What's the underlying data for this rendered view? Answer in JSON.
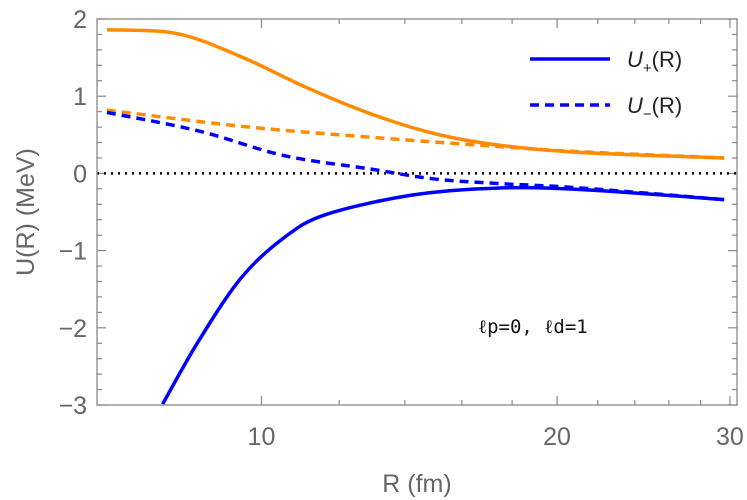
{
  "chart_data": {
    "type": "line",
    "title": "",
    "xlabel": "R (fm)",
    "ylabel": "U(R) (MeV)",
    "x_scale": "log",
    "xlim": [
      6.8,
      30.5
    ],
    "ylim": [
      -3,
      2
    ],
    "x_ticks": [
      10,
      20,
      30
    ],
    "x_minor_ticks": [
      12,
      14,
      16,
      18,
      22,
      24,
      26,
      28
    ],
    "y_ticks": [
      -3,
      -2,
      -1,
      0,
      1,
      2
    ],
    "grid": false,
    "legend_placement": "top-right",
    "annotation": "ℓp=0, ℓd=1",
    "annotation_parts": {
      "l1": "ℓ",
      "s1": "p",
      "v1": "=0, ",
      "l2": "ℓ",
      "s2": "d",
      "v2": "=1"
    },
    "legend": [
      {
        "label_main": "U",
        "label_sub": "+",
        "label_tail": "(R)",
        "style": "solid",
        "color": "#0000FF"
      },
      {
        "label_main": "U",
        "label_sub": "−",
        "label_tail": "(R)",
        "style": "dashed",
        "color": "#0000FF"
      }
    ],
    "reference_line": {
      "y": 0,
      "style": "dotted",
      "color": "#000000"
    },
    "series": [
      {
        "style": "solid",
        "color": "#FF8C00",
        "x": [
          6.96,
          8.21,
          9.54,
          11.08,
          12.87,
          14.95,
          17.36,
          21.2,
          29.6
        ],
        "y": [
          1.86,
          1.81,
          1.51,
          1.12,
          0.78,
          0.52,
          0.37,
          0.27,
          0.2
        ]
      },
      {
        "style": "dashed",
        "color": "#FF8C00",
        "x": [
          6.96,
          9.54,
          12.87,
          17.36,
          21.2,
          29.6
        ],
        "y": [
          0.82,
          0.61,
          0.47,
          0.35,
          0.28,
          0.2
        ]
      },
      {
        "style": "solid",
        "color": "#0000FF",
        "x": [
          7.93,
          8.63,
          9.54,
          10.55,
          11.65,
          14.25,
          17.36,
          21.2,
          29.6
        ],
        "y": [
          -2.99,
          -2.17,
          -1.35,
          -0.83,
          -0.53,
          -0.28,
          -0.19,
          -0.21,
          -0.34
        ]
      },
      {
        "style": "dashed",
        "color": "#0000FF",
        "x": [
          6.96,
          8.63,
          10.55,
          12.87,
          14.95,
          17.36,
          21.2,
          29.6
        ],
        "y": [
          0.79,
          0.55,
          0.23,
          0.06,
          -0.07,
          -0.13,
          -0.19,
          -0.34
        ]
      }
    ]
  }
}
